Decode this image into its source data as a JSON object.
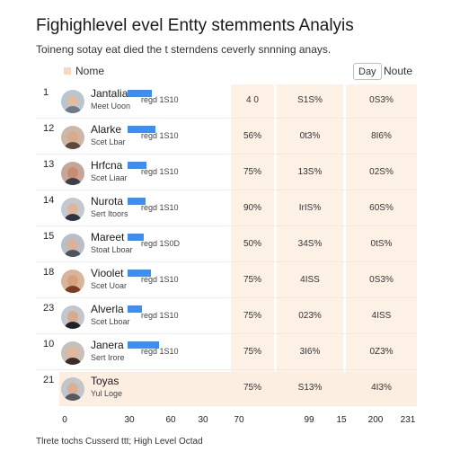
{
  "header": {
    "title": "Fighighlevel evel Entty stemments Analyis",
    "subtitle": "Toineng sotay eat died the t sterndens ceverly snnning anays."
  },
  "filters": {
    "legend_label": "Nome",
    "toggle_active": "Day",
    "toggle_other": "Noute",
    "legend_color": "#f5d8bd"
  },
  "rows": [
    {
      "rank": "1",
      "name": "Jantalia",
      "sub": "Meet Uoon",
      "bar_value": "regd 1S10",
      "bar_fraction": 0.48,
      "c1": "4 0",
      "c2": "S1S%",
      "c3": "0S3%",
      "highlight": false,
      "avatar": {
        "bg": "#b9c6d2",
        "skin": "#e2bba0",
        "cloth": "#6c7a89"
      }
    },
    {
      "rank": "12",
      "name": "Alarke",
      "sub": "Scet Lbar",
      "bar_value": "regd 1S10",
      "bar_fraction": 0.56,
      "c1": "56%",
      "c2": "0t3%",
      "c3": "8I6%",
      "highlight": false,
      "avatar": {
        "bg": "#cdb8a8",
        "skin": "#d9aa8c",
        "cloth": "#5a4a42"
      }
    },
    {
      "rank": "13",
      "name": "Hrfcna",
      "sub": "Scet Liaar",
      "bar_value": "regd 1S10",
      "bar_fraction": 0.38,
      "c1": "75%",
      "c2": "13S%",
      "c3": "02S%",
      "highlight": false,
      "avatar": {
        "bg": "#c7a69a",
        "skin": "#c98c6e",
        "cloth": "#3c3f4a"
      }
    },
    {
      "rank": "14",
      "name": "Nurota",
      "sub": "Sert Itoors",
      "bar_value": "regd 1S10",
      "bar_fraction": 0.36,
      "c1": "90%",
      "c2": "IrIS%",
      "c3": "60S%",
      "highlight": false,
      "avatar": {
        "bg": "#c4c9cf",
        "skin": "#e0b59a",
        "cloth": "#2e3440"
      }
    },
    {
      "rank": "15",
      "name": "Mareet",
      "sub": "Stoat Lboar",
      "bar_value": "regd 1S0D",
      "bar_fraction": 0.32,
      "c1": "50%",
      "c2": "34S%",
      "c3": "0tS%",
      "highlight": false,
      "avatar": {
        "bg": "#b8bfc7",
        "skin": "#ddb298",
        "cloth": "#4a5560"
      }
    },
    {
      "rank": "18",
      "name": "Vioolet",
      "sub": "Scet Uoar",
      "bar_value": "regd 1S10",
      "bar_fraction": 0.46,
      "c1": "75%",
      "c2": "4ISS",
      "c3": "0S3%",
      "highlight": false,
      "avatar": {
        "bg": "#d8b49a",
        "skin": "#d8a07c",
        "cloth": "#7a3e22"
      }
    },
    {
      "rank": "23",
      "name": "Alverla",
      "sub": "Scet Lboar",
      "bar_value": "regd 1S10",
      "bar_fraction": 0.28,
      "c1": "75%",
      "c2": "023%",
      "c3": "4ISS",
      "highlight": false,
      "avatar": {
        "bg": "#c3c6cb",
        "skin": "#d9ab8e",
        "cloth": "#1f2329"
      }
    },
    {
      "rank": "10",
      "name": "Janera",
      "sub": "Sert Irore",
      "bar_value": "regd 1S10",
      "bar_fraction": 0.62,
      "c1": "75%",
      "c2": "3I6%",
      "c3": "0Z3%",
      "highlight": false,
      "avatar": {
        "bg": "#c9bfb6",
        "skin": "#e1b89e",
        "cloth": "#3a2e28"
      }
    },
    {
      "rank": "21",
      "name": "Toyas",
      "sub": "Yul Loge",
      "bar_value": "",
      "bar_fraction": 0,
      "c1": "75%",
      "c2": "S13%",
      "c3": "4I3%",
      "highlight": true,
      "avatar": {
        "bg": "#c2c5ca",
        "skin": "#dcae92",
        "cloth": "#555a62"
      }
    }
  ],
  "axis": {
    "ticks": [
      "0",
      "30",
      "60",
      "30",
      "70",
      "99",
      "15",
      "200",
      "231"
    ]
  },
  "footer": {
    "note": "Tlrete tochs Cusserd ttt; High Level Octad"
  },
  "colors": {
    "accent_bar": "#3d8ef0",
    "column_tint": "#fdf1e6",
    "highlight_row": "#fdeee2"
  }
}
